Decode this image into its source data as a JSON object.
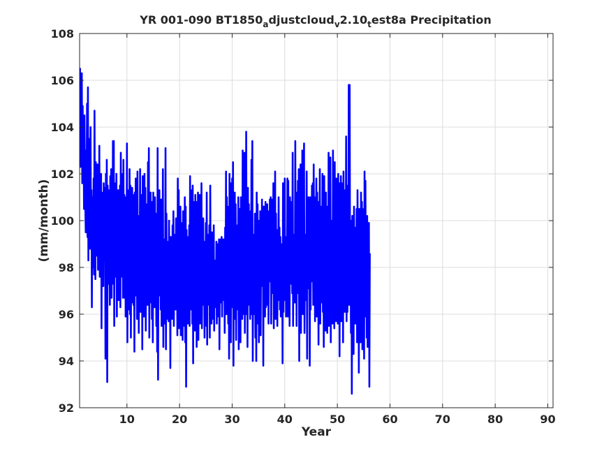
{
  "chart_data": {
    "type": "line",
    "title_parts": [
      {
        "text": "YR 001-090 BT1850",
        "sub": false
      },
      {
        "text": "a",
        "sub": true
      },
      {
        "text": "djustcloud",
        "sub": false
      },
      {
        "text": "v",
        "sub": true
      },
      {
        "text": "2.10",
        "sub": false
      },
      {
        "text": "t",
        "sub": true
      },
      {
        "text": "est8a Precipitation",
        "sub": false
      }
    ],
    "xlabel": "Year",
    "ylabel": "(mm/month)",
    "xlim": [
      1,
      91
    ],
    "ylim": [
      92,
      108
    ],
    "xticks": [
      "10",
      "20",
      "30",
      "40",
      "50",
      "60",
      "70",
      "80",
      "90"
    ],
    "yticks": [
      "92",
      "94",
      "96",
      "98",
      "100",
      "102",
      "104",
      "106",
      "108"
    ],
    "grid": true,
    "line_color": "#0000ff",
    "series": [
      {
        "x_start": 1,
        "x_step": 0.0833333,
        "values": [
          103.5,
          106.5,
          102.3,
          105.8,
          102.4,
          106.3,
          101.6,
          104.9,
          102.2,
          104.3,
          100.5,
          104.5,
          102.4,
          100.6,
          99.5,
          103.0,
          101.2,
          105.0,
          99.3,
          105.7,
          98.3,
          103.5,
          99.8,
          102.0,
          98.8,
          104.0,
          99.0,
          101.3,
          96.3,
          101.0,
          98.0,
          99.9,
          101.8,
          97.7,
          104.7,
          99.2,
          97.5,
          102.5,
          98.8,
          101.1,
          98.5,
          102.4,
          97.9,
          99.9,
          98.8,
          103.2,
          97.6,
          100.6,
          98.1,
          102.0,
          95.4,
          100.5,
          98.8,
          101.2,
          97.2,
          101.6,
          99.8,
          98.3,
          101.4,
          94.1,
          102.0,
          97.0,
          102.6,
          93.1,
          101.5,
          98.4,
          101.3,
          97.3,
          100.2,
          96.4,
          101.9,
          97.9,
          102.2,
          96.7,
          100.9,
          98.5,
          103.4,
          97.3,
          103.4,
          95.5,
          100.7,
          98.6,
          101.6,
          97.6,
          102.0,
          95.9,
          100.9,
          97.4,
          101.3,
          96.6,
          100.1,
          98.4,
          101.5,
          96.3,
          102.9,
          97.6,
          100.3,
          98.3,
          102.0,
          96.7,
          102.6,
          97.3,
          101.1,
          96.7,
          101.0,
          95.9,
          100.2,
          97.6,
          103.3,
          94.8,
          100.5,
          96.7,
          101.3,
          96.2,
          102.2,
          96.0,
          101.5,
          95.0,
          100.4,
          96.5,
          101.4,
          98.0,
          99.7,
          96.4,
          101.1,
          94.4,
          101.2,
          97.2,
          101.8,
          96.8,
          100.9,
          95.8,
          102.1,
          96.1,
          99.8,
          95.2,
          100.2,
          97.4,
          102.2,
          96.1,
          101.1,
          97.0,
          100.4,
          94.5,
          101.9,
          96.1,
          100.8,
          95.9,
          102.0,
          96.5,
          101.4,
          95.3,
          99.5,
          96.8,
          100.7,
          96.4,
          102.5,
          98.0,
          103.1,
          95.0,
          99.5,
          96.5,
          101.2,
          96.9,
          100.8,
          95.8,
          100.3,
          94.8,
          101.2,
          97.2,
          99.9,
          96.3,
          101.0,
          96.9,
          100.3,
          95.5,
          99.7,
          94.4,
          103.1,
          93.2,
          100.1,
          97.9,
          101.3,
          96.8,
          98.5,
          96.2,
          100.9,
          95.5,
          99.8,
          97.3,
          102.2,
          94.6,
          99.2,
          97.5,
          98.7,
          95.6,
          103.1,
          94.5,
          100.3,
          96.0,
          99.1,
          95.8,
          98.8,
          95.7,
          100.0,
          96.1,
          98.9,
          93.7,
          99.3,
          97.2,
          98.8,
          95.8,
          99.8,
          96.7,
          100.4,
          95.5,
          99.4,
          96.6,
          99.3,
          96.2,
          100.1,
          96.5,
          98.8,
          95.1,
          101.8,
          95.6,
          101.3,
          95.4,
          98.7,
          96.7,
          100.6,
          95.1,
          99.7,
          96.2,
          99.9,
          94.9,
          100.4,
          97.0,
          99.2,
          95.5,
          101.0,
          94.8,
          100.6,
          92.9,
          99.6,
          96.5,
          98.8,
          95.6,
          99.3,
          96.8,
          99.8,
          95.5,
          101.9,
          96.2,
          101.3,
          97.7,
          99.5,
          95.6,
          101.5,
          93.9,
          100.8,
          96.1,
          99.1,
          95.3,
          101.1,
          95.9,
          100.8,
          94.6,
          99.3,
          96.4,
          101.2,
          94.9,
          98.8,
          96.2,
          101.1,
          95.6,
          99.7,
          96.7,
          101.6,
          95.4,
          99.5,
          97.1,
          100.1,
          96.4,
          98.1,
          95.0,
          99.1,
          96.5,
          99.9,
          95.5,
          101.2,
          94.7,
          99.4,
          96.4,
          98.5,
          97.3,
          99.8,
          95.0,
          101.5,
          97.2,
          99.4,
          95.6,
          99.5,
          97.6,
          98.9,
          95.8,
          99.8,
          95.3,
          98.3,
          97.1,
          98.2,
          96.3,
          99.1,
          95.6,
          99.0,
          96.5,
          98.6,
          95.9,
          99.2,
          94.5,
          98.7,
          97.3,
          99.2,
          96.5,
          99.3,
          95.9,
          98.7,
          96.9,
          99.2,
          96.6,
          98.9,
          95.2,
          99.7,
          96.6,
          102.1,
          96.0,
          101.0,
          97.8,
          100.6,
          95.6,
          98.8,
          94.1,
          102.0,
          97.1,
          100.7,
          94.8,
          101.6,
          97.9,
          101.8,
          96.3,
          102.5,
          93.8,
          100.7,
          97.3,
          101.2,
          95.8,
          100.7,
          94.9,
          99.5,
          96.2,
          99.8,
          97.0,
          101.0,
          94.5,
          100.5,
          96.9,
          100.5,
          94.8,
          101.0,
          97.4,
          99.9,
          95.8,
          103.0,
          96.0,
          101.3,
          97.5,
          102.9,
          95.2,
          101.9,
          96.0,
          103.8,
          97.5,
          99.7,
          94.6,
          101.4,
          97.0,
          100.7,
          96.4,
          98.6,
          95.8,
          100.4,
          96.0,
          102.6,
          96.2,
          103.4,
          94.0,
          98.6,
          96.0,
          99.4,
          97.6,
          100.3,
          95.0,
          99.4,
          94.0,
          101.2,
          96.6,
          100.7,
          95.6,
          100.0,
          94.8,
          99.3,
          96.5,
          100.4,
          95.1,
          99.1,
          97.2,
          100.9,
          97.4,
          100.6,
          93.8,
          100.6,
          97.5,
          99.6,
          95.9,
          100.8,
          96.3,
          99.9,
          96.4,
          100.7,
          96.9,
          98.6,
          95.6,
          100.4,
          98.0,
          100.9,
          97.4,
          101.0,
          95.6,
          99.9,
          96.9,
          100.9,
          97.0,
          101.6,
          95.4,
          100.4,
          96.3,
          102.1,
          95.8,
          100.3,
          96.8,
          99.6,
          95.5,
          98.9,
          96.6,
          101.0,
          97.5,
          99.7,
          96.2,
          99.3,
          95.9,
          98.5,
          97.1,
          99.0,
          93.9,
          101.6,
          96.1,
          98.8,
          97.1,
          101.8,
          96.6,
          99.3,
          95.9,
          99.2,
          96.3,
          101.8,
          95.9,
          101.7,
          97.0,
          100.7,
          95.5,
          101.0,
          97.8,
          100.3,
          97.3,
          100.8,
          96.9,
          102.9,
          95.5,
          99.4,
          96.6,
          99.0,
          96.5,
          103.4,
          97.3,
          99.5,
          95.5,
          101.2,
          97.5,
          101.7,
          96.9,
          102.2,
          94.0,
          100.4,
          97.5,
          102.4,
          95.2,
          101.6,
          96.0,
          103.0,
          97.8,
          101.6,
          96.0,
          103.3,
          95.2,
          98.4,
          96.6,
          99.4,
          97.0,
          102.1,
          94.1,
          100.2,
          97.1,
          101.0,
          97.1,
          100.2,
          93.8,
          101.0,
          96.2,
          99.5,
          97.4,
          101.5,
          97.9,
          101.6,
          96.4,
          102.4,
          98.1,
          100.0,
          95.7,
          101.0,
          96.8,
          101.8,
          95.9,
          101.2,
          97.1,
          99.8,
          94.7,
          100.8,
          97.4,
          102.2,
          95.6,
          100.6,
          96.8,
          98.8,
          96.5,
          102.0,
          96.1,
          99.4,
          94.6,
          101.9,
          97.5,
          99.5,
          95.3,
          101.2,
          96.7,
          100.6,
          95.2,
          99.0,
          96.9,
          102.9,
          95.5,
          98.6,
          96.5,
          102.7,
          94.8,
          99.1,
          96.3,
          100.0,
          95.6,
          103.0,
          96.6,
          100.4,
          95.4,
          102.5,
          97.1,
          101.1,
          95.7,
          101.8,
          96.4,
          101.5,
          95.6,
          102.0,
          96.7,
          101.6,
          94.2,
          100.3,
          97.8,
          101.9,
          95.7,
          101.6,
          96.6,
          101.0,
          94.8,
          102.1,
          96.1,
          100.2,
          96.1,
          101.3,
          97.6,
          103.6,
          95.7,
          100.7,
          96.1,
          101.5,
          97.2,
          105.8,
          96.4,
          105.8,
          97.8,
          99.4,
          95.2,
          100.0,
          92.6,
          100.2,
          97.1,
          100.2,
          94.3,
          100.6,
          96.8,
          99.7,
          95.6,
          99.1,
          97.1,
          100.5,
          94.8,
          101.3,
          97.7,
          99.9,
          93.5,
          100.5,
          96.8,
          100.1,
          94.8,
          101.2,
          97.2,
          100.8,
          94.5,
          99.6,
          95.7,
          100.5,
          94.1,
          102.1,
          95.9,
          101.7,
          96.6,
          99.4,
          95.0,
          100.2,
          94.6,
          98.9,
          94.7,
          99.9,
          92.9,
          98.6
        ]
      }
    ]
  }
}
